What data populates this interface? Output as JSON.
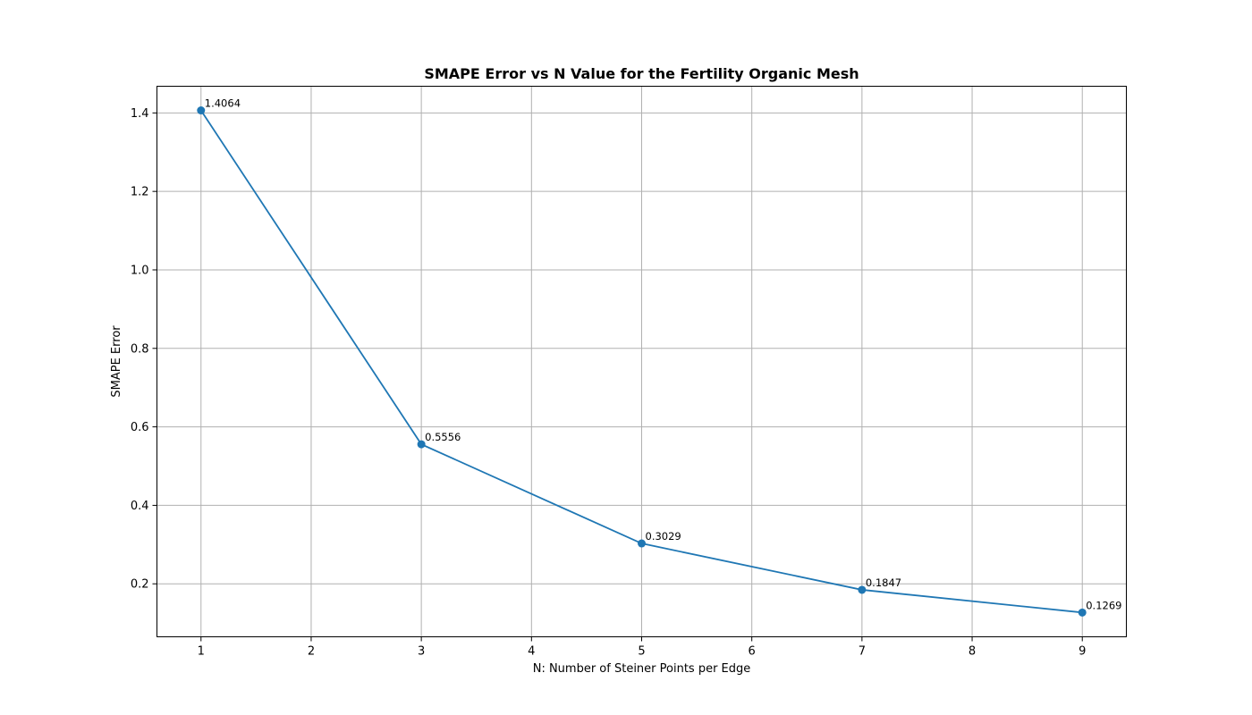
{
  "chart_data": {
    "type": "line",
    "title": "SMAPE Error vs N Value for the Fertility Organic Mesh",
    "xlabel": "N: Number of Steiner Points per Edge",
    "ylabel": "SMAPE Error",
    "xlim": [
      0.6,
      9.4
    ],
    "ylim": [
      0.065,
      1.468
    ],
    "xticks": [
      1,
      2,
      3,
      4,
      5,
      6,
      7,
      8,
      9
    ],
    "yticks": [
      0.2,
      0.4,
      0.6,
      0.8,
      1.0,
      1.2,
      1.4
    ],
    "grid": true,
    "series": [
      {
        "x": [
          1,
          3,
          5,
          7,
          9
        ],
        "y": [
          1.4064,
          0.5556,
          0.3029,
          0.1847,
          0.1269
        ],
        "labels": [
          "1.4064",
          "0.5556",
          "0.3029",
          "0.1847",
          "0.1269"
        ],
        "color": "#1f77b4"
      }
    ]
  }
}
